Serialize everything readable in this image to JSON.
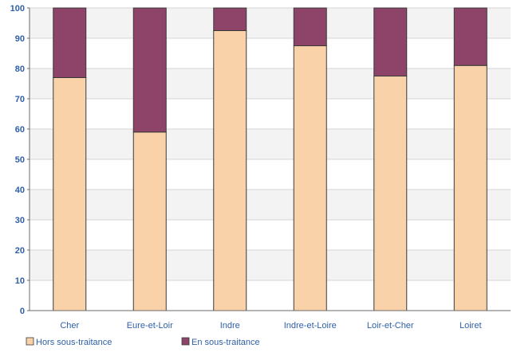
{
  "chart_data": {
    "type": "bar",
    "stacked": true,
    "categories": [
      "Cher",
      "Eure-et-Loir",
      "Indre",
      "Indre-et-Loire",
      "Loir-et-Cher",
      "Loiret"
    ],
    "series": [
      {
        "name": "Hors sous-traitance",
        "color": "#f9d2aa",
        "values": [
          77,
          59,
          92.5,
          87.5,
          77.5,
          81
        ]
      },
      {
        "name": "En sous-traitance",
        "color": "#8e4468",
        "values": [
          23,
          41,
          7.5,
          12.5,
          22.5,
          19
        ]
      }
    ],
    "ylim": [
      0,
      100
    ],
    "yticks": [
      0,
      10,
      20,
      30,
      40,
      50,
      60,
      70,
      80,
      90,
      100
    ],
    "grid": true,
    "legend_position": "bottom-left",
    "title": "",
    "xlabel": "",
    "ylabel": ""
  }
}
